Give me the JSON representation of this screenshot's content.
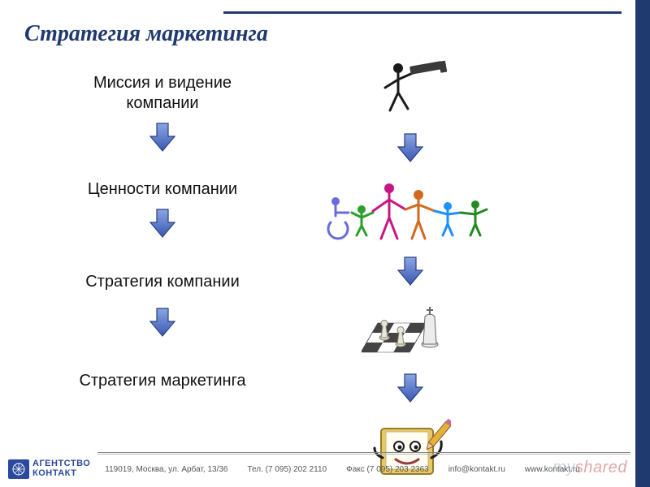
{
  "title": "Стратегия маркетинга",
  "steps": {
    "s1": "Миссия и видение\nкомпании",
    "s2": "Ценности компании",
    "s3": "Стратегия компании",
    "s4": "Стратегия маркетинга"
  },
  "arrow": {
    "fill_top": "#8aa6e6",
    "fill_bottom": "#3a58b0",
    "stroke": "#2a3e80",
    "width": 34,
    "height": 38
  },
  "illustrations": {
    "telescope": {
      "body": "#1a1a1a",
      "scope": "#3a3a3a"
    },
    "family": {
      "colors": [
        "#6a6adf",
        "#2aa02a",
        "#c71585",
        "#d2691e",
        "#1e90ff",
        "#228b22"
      ]
    },
    "chess": {
      "board": "#444",
      "piece_light": "#e8e4d8",
      "piece_dark": "#555"
    },
    "notebook": {
      "cover": "#e8c96a",
      "pages": "#fffdf2",
      "face_eye": "#1a1a1a",
      "pencil": "#8a5a2a"
    }
  },
  "styling": {
    "title_color": "#1f3a6e",
    "title_fontsize": 28,
    "body_fontsize": 20,
    "body_color": "#111111",
    "right_bar_color": "#1f3a6e",
    "background": "#ffffff"
  },
  "footer": {
    "logo_top": "АГЕНТСТВО",
    "logo_bottom": "КОНТАКТ",
    "address": "119019, Москва, ул. Арбат, 13/36",
    "tel": "Тел. (7 095) 202 2110",
    "fax": "Факс (7 095) 203 2363",
    "email": "info@kontakt.ru",
    "url": "www.kontakt.ru"
  },
  "watermark": "myshared"
}
